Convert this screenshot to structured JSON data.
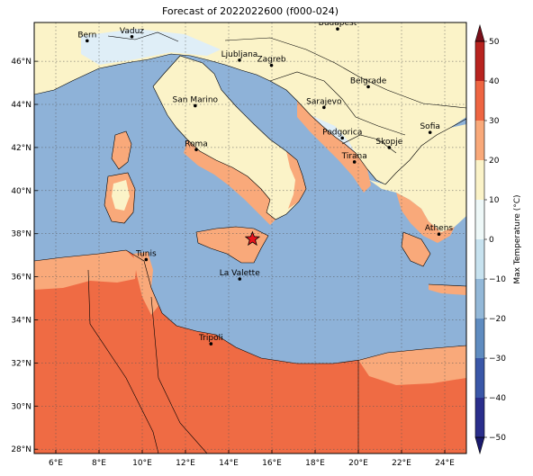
{
  "title": "Forecast of 2022022600 (f000-024)",
  "map": {
    "lon_range": [
      5,
      25
    ],
    "lat_range": [
      27.8,
      47.8
    ],
    "lon_ticks": [
      {
        "value": 6,
        "label": "6°E"
      },
      {
        "value": 8,
        "label": "8°E"
      },
      {
        "value": 10,
        "label": "10°E"
      },
      {
        "value": 12,
        "label": "12°E"
      },
      {
        "value": 14,
        "label": "14°E"
      },
      {
        "value": 16,
        "label": "16°E"
      },
      {
        "value": 18,
        "label": "18°E"
      },
      {
        "value": 20,
        "label": "20°E"
      },
      {
        "value": 22,
        "label": "22°E"
      },
      {
        "value": 24,
        "label": "24°E"
      }
    ],
    "lat_ticks": [
      {
        "value": 28,
        "label": "28°N"
      },
      {
        "value": 30,
        "label": "30°N"
      },
      {
        "value": 32,
        "label": "32°N"
      },
      {
        "value": 34,
        "label": "34°N"
      },
      {
        "value": 36,
        "label": "36°N"
      },
      {
        "value": 38,
        "label": "38°N"
      },
      {
        "value": 40,
        "label": "40°N"
      },
      {
        "value": 42,
        "label": "42°N"
      },
      {
        "value": 44,
        "label": "44°N"
      },
      {
        "value": 46,
        "label": "46°N"
      }
    ],
    "grid": true,
    "cities": [
      {
        "name": "Bern",
        "lon": 7.45,
        "lat": 46.95
      },
      {
        "name": "Vaduz",
        "lon": 9.52,
        "lat": 47.14
      },
      {
        "name": "Budapest",
        "lon": 19.04,
        "lat": 47.5
      },
      {
        "name": "Ljubljana",
        "lon": 14.5,
        "lat": 46.05
      },
      {
        "name": "Zagreb",
        "lon": 15.98,
        "lat": 45.81
      },
      {
        "name": "Belgrade",
        "lon": 20.46,
        "lat": 44.82
      },
      {
        "name": "San Marino",
        "lon": 12.45,
        "lat": 43.94
      },
      {
        "name": "Sarajevo",
        "lon": 18.41,
        "lat": 43.86
      },
      {
        "name": "Sofia",
        "lon": 23.32,
        "lat": 42.7
      },
      {
        "name": "Podgorica",
        "lon": 19.26,
        "lat": 42.44
      },
      {
        "name": "Skopje",
        "lon": 21.43,
        "lat": 42.0
      },
      {
        "name": "Roma",
        "lon": 12.5,
        "lat": 41.9
      },
      {
        "name": "Tirana",
        "lon": 19.82,
        "lat": 41.33
      },
      {
        "name": "Athens",
        "lon": 23.73,
        "lat": 37.98
      },
      {
        "name": "Tunis",
        "lon": 10.18,
        "lat": 36.8
      },
      {
        "name": "La Valette",
        "lon": 14.51,
        "lat": 35.9
      },
      {
        "name": "Tripoli",
        "lon": 13.18,
        "lat": 32.89
      }
    ],
    "marker": {
      "type": "star",
      "lon": 15.1,
      "lat": 37.75,
      "color": "#e8141c"
    }
  },
  "colorbar": {
    "label": "Max Temperature (°C)",
    "min": -50,
    "max": 50,
    "ticks": [
      -50,
      -40,
      -30,
      -20,
      -10,
      0,
      10,
      20,
      30,
      40,
      50
    ],
    "bands": [
      {
        "from": -50,
        "to": -40,
        "color": "#2a2e8c"
      },
      {
        "from": -40,
        "to": -30,
        "color": "#3a57a8"
      },
      {
        "from": -30,
        "to": -20,
        "color": "#5f8cc0"
      },
      {
        "from": -20,
        "to": -10,
        "color": "#93b8d8"
      },
      {
        "from": -10,
        "to": 0,
        "color": "#c7e2ef"
      },
      {
        "from": 0,
        "to": 10,
        "color": "#eef8f8"
      },
      {
        "from": 10,
        "to": 20,
        "color": "#fbf3c8"
      },
      {
        "from": 20,
        "to": 30,
        "color": "#f9a97a"
      },
      {
        "from": 30,
        "to": 40,
        "color": "#ee6542"
      },
      {
        "from": 40,
        "to": 50,
        "color": "#b8231f"
      }
    ],
    "extend_low_color": "#1a1a6e",
    "extend_high_color": "#7a0f1a"
  },
  "colors": {
    "sea": "#8eb2d8",
    "land_warm": "#fbf3c8",
    "land_cool": "#dfeef7",
    "coast_warm": "#f9a97a",
    "africa_hot": "#ef6b44"
  }
}
